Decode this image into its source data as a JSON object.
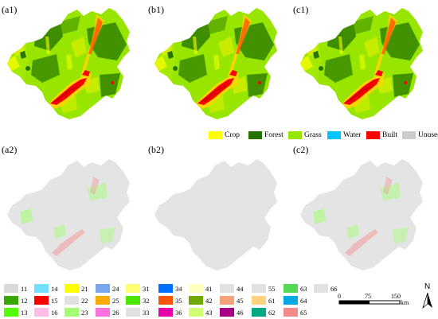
{
  "panels": [
    {
      "id": "a1",
      "label": "(a1)",
      "kind": "landuse"
    },
    {
      "id": "b1",
      "label": "(b1)",
      "kind": "landuse"
    },
    {
      "id": "c1",
      "label": "(c1)",
      "kind": "landuse"
    },
    {
      "id": "a2",
      "label": "(a2)",
      "kind": "change"
    },
    {
      "id": "b2",
      "label": "(b2)",
      "kind": "change"
    },
    {
      "id": "c2",
      "label": "(c2)",
      "kind": "change"
    }
  ],
  "legend_landuse": [
    {
      "label": "Crop",
      "color": "#ffff00"
    },
    {
      "label": "Forest",
      "color": "#267300"
    },
    {
      "label": "Grass",
      "color": "#98e600"
    },
    {
      "label": "Water",
      "color": "#00c5ff"
    },
    {
      "label": "Built",
      "color": "#ff0000"
    },
    {
      "label": "Unused",
      "color": "#cccccc"
    }
  ],
  "legend_change": [
    {
      "code": "11",
      "color": "#d9d9d9"
    },
    {
      "code": "12",
      "color": "#38a800"
    },
    {
      "code": "13",
      "color": "#55ff00"
    },
    {
      "code": "14",
      "color": "#73dfff"
    },
    {
      "code": "15",
      "color": "#ff0000"
    },
    {
      "code": "16",
      "color": "#ffbee8"
    },
    {
      "code": "21",
      "color": "#ffff00"
    },
    {
      "code": "22",
      "color": "#e1e1e1"
    },
    {
      "code": "23",
      "color": "#a3ff73"
    },
    {
      "code": "24",
      "color": "#7aa6ec"
    },
    {
      "code": "25",
      "color": "#ffaa00"
    },
    {
      "code": "26",
      "color": "#ff73df"
    },
    {
      "code": "31",
      "color": "#ffff73"
    },
    {
      "code": "32",
      "color": "#4ce600"
    },
    {
      "code": "33",
      "color": "#e1e1e1"
    },
    {
      "code": "34",
      "color": "#0070ff"
    },
    {
      "code": "35",
      "color": "#ff5500"
    },
    {
      "code": "36",
      "color": "#e600a9"
    },
    {
      "code": "41",
      "color": "#ffffbe"
    },
    {
      "code": "42",
      "color": "#70a800"
    },
    {
      "code": "43",
      "color": "#d1ff73"
    },
    {
      "code": "44",
      "color": "#e1e1e1"
    },
    {
      "code": "45",
      "color": "#f5a27a"
    },
    {
      "code": "46",
      "color": "#a80084"
    },
    {
      "code": "55",
      "color": "#e1e1e1"
    },
    {
      "code": "61",
      "color": "#ffd37f"
    },
    {
      "code": "62",
      "color": "#00a884"
    },
    {
      "code": "63",
      "color": "#55d955"
    },
    {
      "code": "64",
      "color": "#00a9e6"
    },
    {
      "code": "65",
      "color": "#f58a8a"
    },
    {
      "code": "66",
      "color": "#e1e1e1"
    }
  ],
  "scale_bar": {
    "ticks": [
      "0",
      "75",
      "150"
    ],
    "unit": "km"
  },
  "north_arrow": {
    "label": "N"
  }
}
